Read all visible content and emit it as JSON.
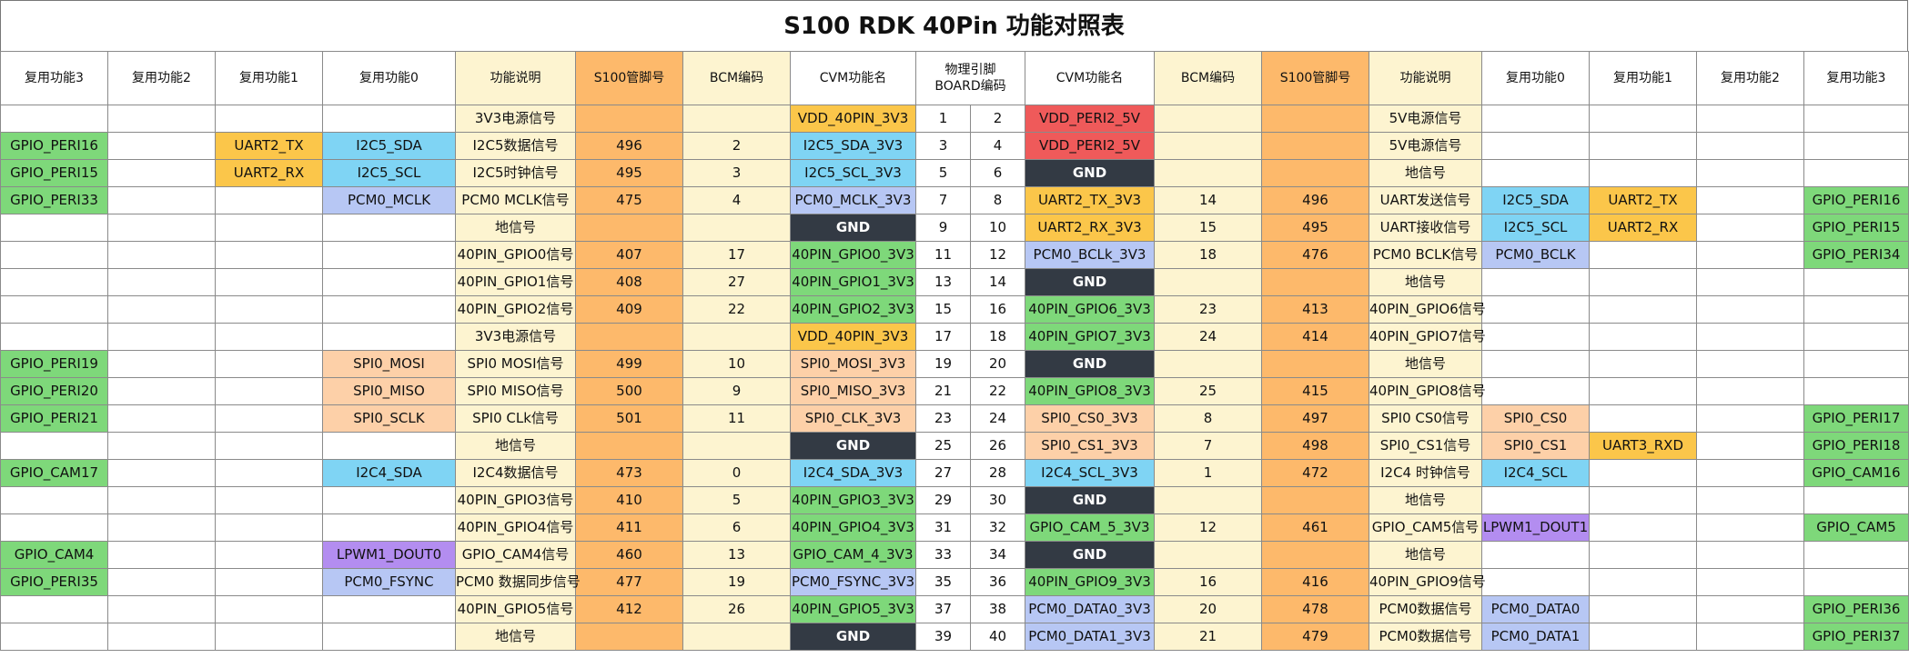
{
  "title": "S100 RDK 40Pin 功能对照表",
  "colors": {
    "green": "#7ed87a",
    "yellow": "#fbc64a",
    "cyan": "#7fd4f4",
    "blue": "#b7c7f4",
    "peach": "#fdd0a8",
    "purple": "#b38df0",
    "red": "#ef5a5a",
    "dark": "#333a44",
    "cream": "#fdf4d0",
    "orange": "#fdb96b"
  },
  "headers": [
    "复用功能3",
    "复用功能2",
    "复用功能1",
    "复用功能0",
    "功能说明",
    "S100管脚号",
    "BCM编码",
    "CVM功能名",
    "物理引脚\nBOARD编码",
    "CVM功能名",
    "BCM编码",
    "S100管脚号",
    "功能说明",
    "复用功能0",
    "复用功能1",
    "复用功能2",
    "复用功能3"
  ],
  "rows": [
    {
      "l3": "",
      "l2": "",
      "l1": "",
      "l0": "",
      "ld": "3V3电源信号",
      "ls": "",
      "lb": "",
      "lc": "VDD_40PIN_3V3",
      "lcc": "yellow",
      "pl": "1",
      "pr": "2",
      "rc": "VDD_PERI2_5V",
      "rcc": "red",
      "rb": "",
      "rs": "",
      "rd": "5V电源信号",
      "r0": "",
      "r1": "",
      "r2": "",
      "r3": ""
    },
    {
      "l3": "GPIO_PERI16",
      "l3c": "green",
      "l2": "",
      "l1": "UART2_TX",
      "l1c": "yellow",
      "l0": "I2C5_SDA",
      "l0c": "cyan",
      "ld": "I2C5数据信号",
      "ls": "496",
      "lb": "2",
      "lc": "I2C5_SDA_3V3",
      "lcc": "cyan",
      "pl": "3",
      "pr": "4",
      "rc": "VDD_PERI2_5V",
      "rcc": "red",
      "rb": "",
      "rs": "",
      "rd": "5V电源信号",
      "r0": "",
      "r1": "",
      "r2": "",
      "r3": ""
    },
    {
      "l3": "GPIO_PERI15",
      "l3c": "green",
      "l2": "",
      "l1": "UART2_RX",
      "l1c": "yellow",
      "l0": "I2C5_SCL",
      "l0c": "cyan",
      "ld": "I2C5时钟信号",
      "ls": "495",
      "lb": "3",
      "lc": "I2C5_SCL_3V3",
      "lcc": "cyan",
      "pl": "5",
      "pr": "6",
      "rc": "GND",
      "rcc": "dark",
      "rb": "",
      "rs": "",
      "rd": "地信号",
      "r0": "",
      "r1": "",
      "r2": "",
      "r3": ""
    },
    {
      "l3": "GPIO_PERI33",
      "l3c": "green",
      "l2": "",
      "l1": "",
      "l0": "PCM0_MCLK",
      "l0c": "blue",
      "ld": "PCM0 MCLK信号",
      "ls": "475",
      "lb": "4",
      "lc": "PCM0_MCLK_3V3",
      "lcc": "blue",
      "pl": "7",
      "pr": "8",
      "rc": "UART2_TX_3V3",
      "rcc": "yellow",
      "rb": "14",
      "rs": "496",
      "rd": "UART发送信号",
      "r0": "I2C5_SDA",
      "r0c": "cyan",
      "r1": "UART2_TX",
      "r1c": "yellow",
      "r2": "",
      "r3": "GPIO_PERI16",
      "r3c": "green"
    },
    {
      "l3": "",
      "l2": "",
      "l1": "",
      "l0": "",
      "ld": "地信号",
      "ls": "",
      "lb": "",
      "lc": "GND",
      "lcc": "dark",
      "pl": "9",
      "pr": "10",
      "rc": "UART2_RX_3V3",
      "rcc": "yellow",
      "rb": "15",
      "rs": "495",
      "rd": "UART接收信号",
      "r0": "I2C5_SCL",
      "r0c": "cyan",
      "r1": "UART2_RX",
      "r1c": "yellow",
      "r2": "",
      "r3": "GPIO_PERI15",
      "r3c": "green"
    },
    {
      "l3": "",
      "l2": "",
      "l1": "",
      "l0": "",
      "ld": "40PIN_GPIO0信号",
      "ls": "407",
      "lb": "17",
      "lc": "40PIN_GPIO0_3V3",
      "lcc": "green",
      "pl": "11",
      "pr": "12",
      "rc": "PCM0_BCLk_3V3",
      "rcc": "blue",
      "rb": "18",
      "rs": "476",
      "rd": "PCM0 BCLK信号",
      "r0": "PCM0_BCLK",
      "r0c": "blue",
      "r1": "",
      "r2": "",
      "r3": "GPIO_PERI34",
      "r3c": "green"
    },
    {
      "l3": "",
      "l2": "",
      "l1": "",
      "l0": "",
      "ld": "40PIN_GPIO1信号",
      "ls": "408",
      "lb": "27",
      "lc": "40PIN_GPIO1_3V3",
      "lcc": "green",
      "pl": "13",
      "pr": "14",
      "rc": "GND",
      "rcc": "dark",
      "rb": "",
      "rs": "",
      "rd": "地信号",
      "r0": "",
      "r1": "",
      "r2": "",
      "r3": ""
    },
    {
      "l3": "",
      "l2": "",
      "l1": "",
      "l0": "",
      "ld": "40PIN_GPIO2信号",
      "ls": "409",
      "lb": "22",
      "lc": "40PIN_GPIO2_3V3",
      "lcc": "green",
      "pl": "15",
      "pr": "16",
      "rc": "40PIN_GPIO6_3V3",
      "rcc": "green",
      "rb": "23",
      "rs": "413",
      "rd": "40PIN_GPIO6信号",
      "r0": "",
      "r1": "",
      "r2": "",
      "r3": ""
    },
    {
      "l3": "",
      "l2": "",
      "l1": "",
      "l0": "",
      "ld": "3V3电源信号",
      "ls": "",
      "lb": "",
      "lc": "VDD_40PIN_3V3",
      "lcc": "yellow",
      "pl": "17",
      "pr": "18",
      "rc": "40PIN_GPIO7_3V3",
      "rcc": "green",
      "rb": "24",
      "rs": "414",
      "rd": "40PIN_GPIO7信号",
      "r0": "",
      "r1": "",
      "r2": "",
      "r3": ""
    },
    {
      "l3": "GPIO_PERI19",
      "l3c": "green",
      "l2": "",
      "l1": "",
      "l0": "SPI0_MOSI",
      "l0c": "peach",
      "ld": "SPI0 MOSI信号",
      "ls": "499",
      "lb": "10",
      "lc": "SPI0_MOSI_3V3",
      "lcc": "peach",
      "pl": "19",
      "pr": "20",
      "rc": "GND",
      "rcc": "dark",
      "rb": "",
      "rs": "",
      "rd": "地信号",
      "r0": "",
      "r1": "",
      "r2": "",
      "r3": ""
    },
    {
      "l3": "GPIO_PERI20",
      "l3c": "green",
      "l2": "",
      "l1": "",
      "l0": "SPI0_MISO",
      "l0c": "peach",
      "ld": "SPI0 MISO信号",
      "ls": "500",
      "lb": "9",
      "lc": "SPI0_MISO_3V3",
      "lcc": "peach",
      "pl": "21",
      "pr": "22",
      "rc": "40PIN_GPIO8_3V3",
      "rcc": "green",
      "rb": "25",
      "rs": "415",
      "rd": "40PIN_GPIO8信号",
      "r0": "",
      "r1": "",
      "r2": "",
      "r3": ""
    },
    {
      "l3": "GPIO_PERI21",
      "l3c": "green",
      "l2": "",
      "l1": "",
      "l0": "SPI0_SCLK",
      "l0c": "peach",
      "ld": "SPI0 CLk信号",
      "ls": "501",
      "lb": "11",
      "lc": "SPI0_CLK_3V3",
      "lcc": "peach",
      "pl": "23",
      "pr": "24",
      "rc": "SPI0_CS0_3V3",
      "rcc": "peach",
      "rb": "8",
      "rs": "497",
      "rd": "SPI0 CS0信号",
      "r0": "SPI0_CS0",
      "r0c": "peach",
      "r1": "",
      "r2": "",
      "r3": "GPIO_PERI17",
      "r3c": "green"
    },
    {
      "l3": "",
      "l2": "",
      "l1": "",
      "l0": "",
      "ld": "地信号",
      "ls": "",
      "lb": "",
      "lc": "GND",
      "lcc": "dark",
      "pl": "25",
      "pr": "26",
      "rc": "SPI0_CS1_3V3",
      "rcc": "peach",
      "rb": "7",
      "rs": "498",
      "rd": "SPI0_CS1信号",
      "r0": "SPI0_CS1",
      "r0c": "peach",
      "r1": "UART3_RXD",
      "r1c": "yellow",
      "r2": "",
      "r3": "GPIO_PERI18",
      "r3c": "green"
    },
    {
      "l3": "GPIO_CAM17",
      "l3c": "green",
      "l2": "",
      "l1": "",
      "l0": "I2C4_SDA",
      "l0c": "cyan",
      "ld": "I2C4数据信号",
      "ls": "473",
      "lb": "0",
      "lc": "I2C4_SDA_3V3",
      "lcc": "cyan",
      "pl": "27",
      "pr": "28",
      "rc": "I2C4_SCL_3V3",
      "rcc": "cyan",
      "rb": "1",
      "rs": "472",
      "rd": "I2C4 时钟信号",
      "r0": "I2C4_SCL",
      "r0c": "cyan",
      "r1": "",
      "r2": "",
      "r3": "GPIO_CAM16",
      "r3c": "green"
    },
    {
      "l3": "",
      "l2": "",
      "l1": "",
      "l0": "",
      "ld": "40PIN_GPIO3信号",
      "ls": "410",
      "lb": "5",
      "lc": "40PIN_GPIO3_3V3",
      "lcc": "green",
      "pl": "29",
      "pr": "30",
      "rc": "GND",
      "rcc": "dark",
      "rb": "",
      "rs": "",
      "rd": "地信号",
      "r0": "",
      "r1": "",
      "r2": "",
      "r3": ""
    },
    {
      "l3": "",
      "l2": "",
      "l1": "",
      "l0": "",
      "ld": "40PIN_GPIO4信号",
      "ls": "411",
      "lb": "6",
      "lc": "40PIN_GPIO4_3V3",
      "lcc": "green",
      "pl": "31",
      "pr": "32",
      "rc": "GPIO_CAM_5_3V3",
      "rcc": "green",
      "rb": "12",
      "rs": "461",
      "rd": "GPIO_CAM5信号",
      "r0": "LPWM1_DOUT1",
      "r0c": "purple",
      "r1": "",
      "r2": "",
      "r3": "GPIO_CAM5",
      "r3c": "green"
    },
    {
      "l3": "GPIO_CAM4",
      "l3c": "green",
      "l2": "",
      "l1": "",
      "l0": "LPWM1_DOUT0",
      "l0c": "purple",
      "ld": "GPIO_CAM4信号",
      "ls": "460",
      "lb": "13",
      "lc": "GPIO_CAM_4_3V3",
      "lcc": "green",
      "pl": "33",
      "pr": "34",
      "rc": "GND",
      "rcc": "dark",
      "rb": "",
      "rs": "",
      "rd": "地信号",
      "r0": "",
      "r1": "",
      "r2": "",
      "r3": ""
    },
    {
      "l3": "GPIO_PERI35",
      "l3c": "green",
      "l2": "",
      "l1": "",
      "l0": "PCM0_FSYNC",
      "l0c": "blue",
      "ld": "PCM0 数据同步信号",
      "ls": "477",
      "lb": "19",
      "lc": "PCM0_FSYNC_3V3",
      "lcc": "blue",
      "pl": "35",
      "pr": "36",
      "rc": "40PIN_GPIO9_3V3",
      "rcc": "green",
      "rb": "16",
      "rs": "416",
      "rd": "40PIN_GPIO9信号",
      "r0": "",
      "r1": "",
      "r2": "",
      "r3": ""
    },
    {
      "l3": "",
      "l2": "",
      "l1": "",
      "l0": "",
      "ld": "40PIN_GPIO5信号",
      "ls": "412",
      "lb": "26",
      "lc": "40PIN_GPIO5_3V3",
      "lcc": "green",
      "pl": "37",
      "pr": "38",
      "rc": "PCM0_DATA0_3V3",
      "rcc": "blue",
      "rb": "20",
      "rs": "478",
      "rd": "PCM0数据信号",
      "r0": "PCM0_DATA0",
      "r0c": "blue",
      "r1": "",
      "r2": "",
      "r3": "GPIO_PERI36",
      "r3c": "green"
    },
    {
      "l3": "",
      "l2": "",
      "l1": "",
      "l0": "",
      "ld": "地信号",
      "ls": "",
      "lb": "",
      "lc": "GND",
      "lcc": "dark",
      "pl": "39",
      "pr": "40",
      "rc": "PCM0_DATA1_3V3",
      "rcc": "blue",
      "rb": "21",
      "rs": "479",
      "rd": "PCM0数据信号",
      "r0": "PCM0_DATA1",
      "r0c": "blue",
      "r1": "",
      "r2": "",
      "r3": "GPIO_PERI37",
      "r3c": "green"
    }
  ]
}
